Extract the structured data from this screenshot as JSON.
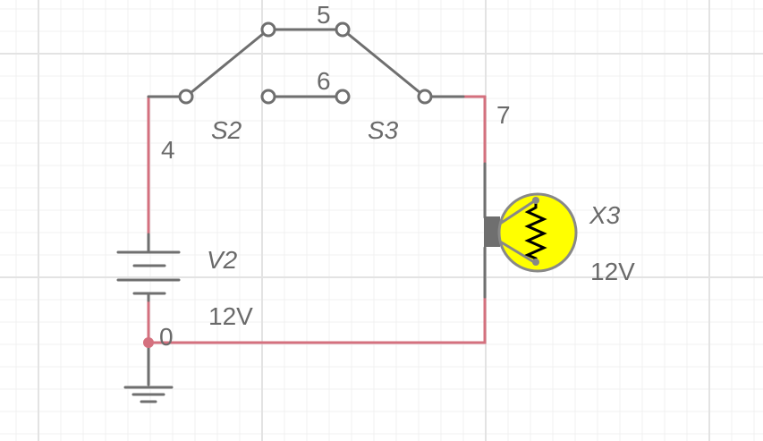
{
  "colors": {
    "wire_active": "#d4707e",
    "component": "#6f6f6f",
    "lamp_fill": "#ffff00",
    "grid_major": "#e3e3e3",
    "grid_minor": "#f1f1f1"
  },
  "nodes": {
    "n4": "4",
    "n5": "5",
    "n6": "6",
    "n7": "7",
    "n0": "0"
  },
  "components": {
    "switch_a": {
      "name": "S2",
      "icon": "spdt-switch"
    },
    "switch_b": {
      "name": "S3",
      "icon": "spdt-switch"
    },
    "battery": {
      "name": "V2",
      "value": "12V",
      "icon": "battery"
    },
    "lamp": {
      "name": "X3",
      "value": "12V",
      "icon": "lamp"
    },
    "ground": {
      "icon": "ground"
    }
  }
}
